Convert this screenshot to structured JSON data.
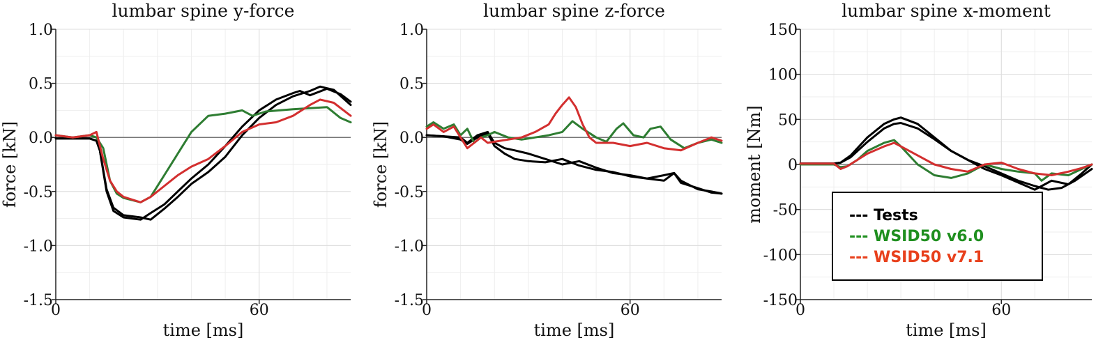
{
  "chart_data": [
    {
      "type": "line",
      "title": "lumbar spine y-force",
      "xlabel": "time [ms]",
      "ylabel": "force [kN]",
      "xlim": [
        0,
        87
      ],
      "ylim": [
        -1.5,
        1.0
      ],
      "xticks": [
        0,
        60
      ],
      "yticks": [
        1.0,
        0.5,
        0.0,
        -0.5,
        -1.0,
        -1.5
      ],
      "ytick_labels": [
        "1.0",
        "0.5",
        "0.0",
        "-0.5",
        "-1.0",
        "-1.5"
      ],
      "series": [
        {
          "group": "Tests",
          "color": "#000000",
          "x": [
            0,
            5,
            10,
            12,
            13,
            15,
            17,
            20,
            25,
            28,
            32,
            36,
            40,
            45,
            50,
            55,
            60,
            65,
            70,
            72,
            75,
            80,
            84,
            87
          ],
          "y": [
            -0.01,
            -0.01,
            -0.01,
            -0.03,
            -0.12,
            -0.5,
            -0.68,
            -0.74,
            -0.76,
            -0.7,
            -0.62,
            -0.5,
            -0.38,
            -0.25,
            -0.08,
            0.1,
            0.25,
            0.35,
            0.41,
            0.43,
            0.39,
            0.45,
            0.4,
            0.33
          ]
        },
        {
          "group": "Tests",
          "color": "#000000",
          "x": [
            0,
            5,
            10,
            12,
            13,
            15,
            17,
            20,
            25,
            28,
            32,
            36,
            40,
            45,
            50,
            55,
            60,
            65,
            70,
            75,
            78,
            82,
            87
          ],
          "y": [
            -0.01,
            -0.01,
            -0.01,
            -0.03,
            -0.12,
            -0.48,
            -0.65,
            -0.72,
            -0.74,
            -0.76,
            -0.66,
            -0.55,
            -0.43,
            -0.32,
            -0.18,
            0.02,
            0.18,
            0.3,
            0.38,
            0.43,
            0.47,
            0.44,
            0.3
          ]
        },
        {
          "group": "WSID50 v6.0",
          "color": "#2e7d32",
          "x": [
            0,
            5,
            10,
            12,
            14,
            16,
            18,
            20,
            25,
            28,
            32,
            36,
            40,
            45,
            50,
            55,
            58,
            62,
            66,
            70,
            75,
            80,
            84,
            87
          ],
          "y": [
            0.02,
            0.0,
            0.02,
            0.0,
            -0.1,
            -0.4,
            -0.52,
            -0.56,
            -0.6,
            -0.55,
            -0.35,
            -0.15,
            0.05,
            0.2,
            0.22,
            0.25,
            0.2,
            0.24,
            0.25,
            0.26,
            0.27,
            0.28,
            0.18,
            0.14
          ]
        },
        {
          "group": "WSID50 v7.1",
          "color": "#d32f2f",
          "x": [
            0,
            5,
            10,
            12,
            14,
            16,
            18,
            20,
            25,
            28,
            32,
            36,
            40,
            45,
            50,
            55,
            60,
            65,
            70,
            75,
            78,
            82,
            87
          ],
          "y": [
            0.02,
            0.0,
            0.02,
            0.05,
            -0.2,
            -0.4,
            -0.5,
            -0.55,
            -0.6,
            -0.55,
            -0.45,
            -0.35,
            -0.27,
            -0.2,
            -0.08,
            0.05,
            0.12,
            0.14,
            0.2,
            0.3,
            0.35,
            0.32,
            0.2
          ]
        }
      ]
    },
    {
      "type": "line",
      "title": "lumbar spine z-force",
      "xlabel": "time [ms]",
      "ylabel": "force [kN]",
      "xlim": [
        0,
        87
      ],
      "ylim": [
        -1.5,
        1.0
      ],
      "xticks": [
        0,
        60
      ],
      "yticks": [
        1.0,
        0.5,
        0.0,
        -0.5,
        -1.0,
        -1.5
      ],
      "ytick_labels": [
        "1.0",
        "0.5",
        "0.0",
        "-0.5",
        "-1.0",
        "-1.5"
      ],
      "series": [
        {
          "group": "Tests",
          "color": "#000000",
          "x": [
            0,
            5,
            10,
            12,
            15,
            18,
            20,
            23,
            26,
            30,
            35,
            40,
            45,
            50,
            55,
            60,
            65,
            70,
            73,
            75,
            80,
            84,
            87
          ],
          "y": [
            0.02,
            0.01,
            0.0,
            -0.05,
            0.02,
            0.05,
            -0.05,
            -0.1,
            -0.12,
            -0.15,
            -0.2,
            -0.25,
            -0.22,
            -0.28,
            -0.33,
            -0.35,
            -0.38,
            -0.35,
            -0.33,
            -0.4,
            -0.48,
            -0.5,
            -0.52
          ]
        },
        {
          "group": "Tests",
          "color": "#000000",
          "x": [
            0,
            5,
            10,
            12,
            15,
            18,
            20,
            23,
            26,
            30,
            35,
            40,
            45,
            50,
            55,
            60,
            65,
            70,
            73,
            75,
            80,
            84,
            87
          ],
          "y": [
            0.02,
            0.01,
            -0.02,
            -0.06,
            0.0,
            0.04,
            -0.08,
            -0.15,
            -0.2,
            -0.22,
            -0.23,
            -0.2,
            -0.26,
            -0.3,
            -0.32,
            -0.36,
            -0.38,
            -0.4,
            -0.33,
            -0.42,
            -0.47,
            -0.51,
            -0.52
          ]
        },
        {
          "group": "WSID50 v6.0",
          "color": "#2e7d32",
          "x": [
            0,
            2,
            5,
            8,
            10,
            12,
            14,
            16,
            18,
            20,
            24,
            28,
            32,
            36,
            40,
            43,
            46,
            50,
            53,
            56,
            58,
            61,
            64,
            66,
            69,
            72,
            76,
            80,
            84,
            87
          ],
          "y": [
            0.1,
            0.14,
            0.08,
            0.12,
            0.02,
            0.08,
            -0.05,
            0.0,
            0.02,
            0.05,
            0.0,
            -0.02,
            0.0,
            0.02,
            0.05,
            0.15,
            0.08,
            0.0,
            -0.04,
            0.08,
            0.13,
            0.02,
            0.0,
            0.08,
            0.1,
            -0.02,
            -0.1,
            -0.05,
            -0.02,
            -0.05
          ]
        },
        {
          "group": "WSID50 v7.1",
          "color": "#d32f2f",
          "x": [
            0,
            2,
            5,
            8,
            10,
            12,
            14,
            16,
            18,
            20,
            24,
            28,
            32,
            36,
            38,
            40,
            42,
            44,
            46,
            48,
            50,
            55,
            60,
            65,
            70,
            75,
            80,
            84,
            87
          ],
          "y": [
            0.08,
            0.12,
            0.05,
            0.1,
            0.0,
            -0.1,
            -0.05,
            0.0,
            -0.05,
            -0.04,
            -0.02,
            0.0,
            0.05,
            0.12,
            0.22,
            0.3,
            0.37,
            0.28,
            0.12,
            0.0,
            -0.05,
            -0.05,
            -0.08,
            -0.05,
            -0.1,
            -0.12,
            -0.05,
            0.0,
            -0.03
          ]
        }
      ]
    },
    {
      "type": "line",
      "title": "lumbar spine x-moment",
      "xlabel": "time [ms]",
      "ylabel": "moment [Nm]",
      "xlim": [
        0,
        87
      ],
      "ylim": [
        -150,
        150
      ],
      "xticks": [
        0,
        60
      ],
      "yticks": [
        150,
        100,
        50,
        0,
        -50,
        -100,
        -150
      ],
      "ytick_labels": [
        "150",
        "100",
        "50",
        "0",
        "-50",
        "-100",
        "-150"
      ],
      "series": [
        {
          "group": "Tests",
          "color": "#000000",
          "x": [
            0,
            5,
            10,
            12,
            15,
            20,
            25,
            28,
            30,
            35,
            40,
            45,
            50,
            55,
            60,
            65,
            70,
            73,
            75,
            80,
            84,
            87
          ],
          "y": [
            1,
            1,
            1,
            2,
            10,
            30,
            45,
            50,
            52,
            45,
            30,
            15,
            5,
            -5,
            -12,
            -20,
            -28,
            -22,
            -18,
            -22,
            -10,
            0
          ]
        },
        {
          "group": "Tests",
          "color": "#000000",
          "x": [
            0,
            5,
            10,
            12,
            15,
            20,
            25,
            28,
            30,
            35,
            40,
            45,
            50,
            55,
            60,
            65,
            70,
            74,
            78,
            82,
            87
          ],
          "y": [
            1,
            1,
            1,
            2,
            8,
            25,
            40,
            45,
            46,
            40,
            28,
            15,
            5,
            -2,
            -10,
            -18,
            -24,
            -28,
            -26,
            -18,
            -5
          ]
        },
        {
          "group": "WSID50 v6.0",
          "color": "#2e7d32",
          "x": [
            0,
            5,
            10,
            12,
            14,
            17,
            20,
            25,
            28,
            30,
            35,
            40,
            45,
            50,
            55,
            60,
            65,
            70,
            72,
            75,
            80,
            84,
            87
          ],
          "y": [
            0,
            0,
            0,
            -3,
            -2,
            5,
            15,
            24,
            27,
            20,
            0,
            -12,
            -15,
            -10,
            0,
            -5,
            -8,
            -10,
            -18,
            -10,
            -12,
            -5,
            0
          ]
        },
        {
          "group": "WSID50 v7.1",
          "color": "#d32f2f",
          "x": [
            0,
            5,
            10,
            12,
            14,
            17,
            20,
            25,
            28,
            30,
            35,
            40,
            45,
            50,
            55,
            60,
            65,
            70,
            75,
            80,
            84,
            87
          ],
          "y": [
            1,
            1,
            1,
            -5,
            -2,
            5,
            12,
            20,
            24,
            20,
            10,
            0,
            -5,
            -8,
            0,
            2,
            -5,
            -10,
            -12,
            -8,
            -4,
            0
          ]
        }
      ]
    }
  ],
  "legend": {
    "placement": "lower-right of third panel",
    "items": [
      {
        "label": "--- Tests",
        "color": "#000000"
      },
      {
        "label": "--- WSID50 v6.0",
        "color": "#1f8f1f"
      },
      {
        "label": "--- WSID50 v7.1",
        "color": "#e8401c"
      }
    ]
  }
}
